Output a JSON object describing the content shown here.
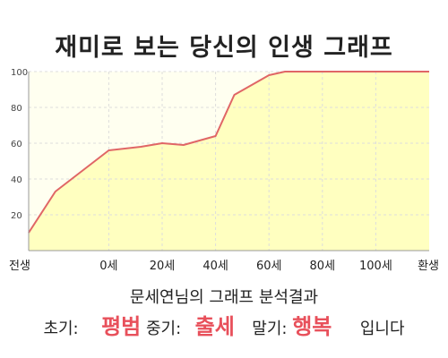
{
  "title": "재미로 보는 당신의 인생 그래프",
  "colors": {
    "line": "#e06666",
    "fill": "#ffffc0",
    "plot_bg": "#fffff0",
    "highlight": "#e8505b",
    "grid": "#dddddd"
  },
  "chart_data": {
    "type": "area",
    "x_labels": [
      "전생",
      "0세",
      "20세",
      "40세",
      "60세",
      "80세",
      "100세",
      "환생"
    ],
    "x_positions": [
      -30,
      0,
      20,
      40,
      60,
      80,
      100,
      120
    ],
    "xlim": [
      -30,
      120
    ],
    "ylim": [
      0,
      100
    ],
    "y_ticks": [
      20,
      40,
      60,
      80,
      100
    ],
    "grid": true,
    "series": [
      {
        "x": [
          -30,
          -20,
          0,
          12,
          20,
          28,
          40,
          47,
          60,
          66,
          80,
          100,
          120
        ],
        "values": [
          10,
          33,
          56,
          58,
          60,
          59,
          64,
          87,
          98,
          100,
          100,
          100,
          100
        ]
      }
    ]
  },
  "result": {
    "title": "문세연님의 그래프 분석결과",
    "early_label": "초기:",
    "early_value": "평범",
    "mid_label": "중기:",
    "mid_value": "출세",
    "late_label": "말기:",
    "late_value": "행복",
    "suffix": "입니다"
  }
}
